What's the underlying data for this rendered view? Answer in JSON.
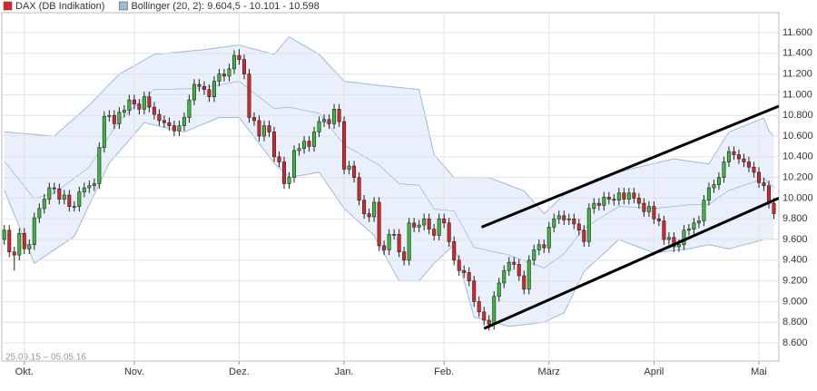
{
  "chart_data": {
    "type": "candlestick",
    "date_range": "25.09.15 – 05.05.16",
    "xlim": [
      -0.5,
      155
    ],
    "xticks": [
      {
        "value": 4,
        "label": "Okt."
      },
      {
        "value": 26,
        "label": "Nov."
      },
      {
        "value": 47,
        "label": "Dez."
      },
      {
        "value": 68,
        "label": "Jan."
      },
      {
        "value": 88,
        "label": "Feb."
      },
      {
        "value": 109,
        "label": "März"
      },
      {
        "value": 130,
        "label": "April"
      },
      {
        "value": 151,
        "label": "Mai"
      }
    ],
    "ylim": [
      8425,
      11793
    ],
    "yticks": [
      {
        "value": 8600,
        "label": "8.600"
      },
      {
        "value": 8800,
        "label": "8.800"
      },
      {
        "value": 9000,
        "label": "9.000"
      },
      {
        "value": 9200,
        "label": "9.200"
      },
      {
        "value": 9400,
        "label": "9.400"
      },
      {
        "value": 9600,
        "label": "9.600"
      },
      {
        "value": 9800,
        "label": "9.800"
      },
      {
        "value": 10000,
        "label": "10.000"
      },
      {
        "value": 10200,
        "label": "10.200"
      },
      {
        "value": 10400,
        "label": "10.400"
      },
      {
        "value": 10600,
        "label": "10.600"
      },
      {
        "value": 10800,
        "label": "10.800"
      },
      {
        "value": 11000,
        "label": "11.000"
      },
      {
        "value": 11200,
        "label": "11.200"
      },
      {
        "value": 11400,
        "label": "11.400"
      },
      {
        "value": 11600,
        "label": "11.600"
      }
    ],
    "grid": true,
    "series": [
      {
        "name": "DAX (DB Indikation)",
        "color": "#d9262b",
        "up_color": "#3cb93c",
        "down_color": "#d9262b",
        "open": [
          9600,
          9690,
          9480,
          9450,
          9660,
          9510,
          9550,
          9810,
          9900,
          9990,
          10100,
          10090,
          9990,
          10030,
          9920,
          9920,
          10060,
          10100,
          10120,
          10140,
          10490,
          10790,
          10800,
          10720,
          10830,
          10850,
          10950,
          10910,
          10860,
          10980,
          10880,
          10810,
          10750,
          10730,
          10700,
          10650,
          10700,
          10780,
          10950,
          11100,
          11080,
          11050,
          10980,
          11130,
          11200,
          11180,
          11250,
          11380,
          11340,
          11200,
          10780,
          10750,
          10600,
          10700,
          10640,
          10400,
          10350,
          10140,
          10200,
          10460,
          10480,
          10550,
          10500,
          10640,
          10740,
          10760,
          10720,
          10860,
          10740,
          10280,
          10310,
          10200,
          9980,
          9850,
          9820,
          9960,
          9540,
          9500,
          9650,
          9650,
          9480,
          9400,
          9760,
          9720,
          9740,
          9800,
          9700,
          9640,
          9800,
          9760,
          9580,
          9400,
          9300,
          9280,
          9200,
          9000,
          8900,
          8820,
          8780,
          9050,
          9180,
          9300,
          9380,
          9360,
          9250,
          9120,
          9400,
          9500,
          9550,
          9520,
          9720,
          9800,
          9830,
          9790,
          9800,
          9750,
          9690,
          9580,
          9900,
          9950,
          9930,
          10010,
          9990,
          9980,
          10050,
          9990,
          10050,
          10000,
          9950,
          9870,
          9920,
          9800,
          9780,
          9600,
          9620,
          9530,
          9550,
          9690,
          9700,
          9760,
          9780,
          9980,
          10100,
          10130,
          10200,
          10350,
          10450,
          10420,
          10380,
          10350,
          10300,
          10250,
          10150,
          10120,
          9950
        ],
        "high": [
          9740,
          9740,
          9530,
          9710,
          9710,
          9600,
          9860,
          9950,
          10040,
          10150,
          10150,
          10140,
          10080,
          10080,
          9970,
          10110,
          10150,
          10170,
          10190,
          10540,
          10840,
          10850,
          10850,
          10880,
          10900,
          11000,
          11000,
          10960,
          11030,
          11030,
          10930,
          10860,
          10800,
          10780,
          10750,
          10750,
          10830,
          11000,
          11150,
          11150,
          11130,
          11100,
          11180,
          11250,
          11250,
          11300,
          11430,
          11440,
          11390,
          11250,
          10830,
          10800,
          10750,
          10750,
          10690,
          10450,
          10400,
          10250,
          10510,
          10530,
          10600,
          10600,
          10690,
          10790,
          10810,
          10810,
          10910,
          10910,
          10790,
          10360,
          10360,
          10250,
          10030,
          9900,
          10010,
          10010,
          9590,
          9700,
          9700,
          9700,
          9530,
          9810,
          9810,
          9790,
          9850,
          9850,
          9750,
          9850,
          9850,
          9810,
          9630,
          9450,
          9350,
          9330,
          9250,
          9050,
          8950,
          8870,
          9100,
          9230,
          9350,
          9430,
          9430,
          9410,
          9300,
          9450,
          9550,
          9600,
          9600,
          9770,
          9850,
          9880,
          9880,
          9850,
          9850,
          9800,
          9740,
          9950,
          10000,
          10000,
          10060,
          10060,
          10040,
          10100,
          10100,
          10100,
          10100,
          10050,
          10000,
          9970,
          9970,
          9850,
          9830,
          9670,
          9670,
          9600,
          9740,
          9750,
          9810,
          9830,
          10030,
          10150,
          10180,
          10250,
          10400,
          10500,
          10500,
          10470,
          10430,
          10400,
          10350,
          10300,
          10200,
          10170,
          10000
        ],
        "low": [
          9550,
          9430,
          9300,
          9400,
          9460,
          9460,
          9500,
          9760,
          9850,
          9940,
          10040,
          9940,
          9940,
          9870,
          9870,
          9870,
          10010,
          10050,
          10070,
          10090,
          10440,
          10740,
          10670,
          10670,
          10780,
          10800,
          10860,
          10810,
          10810,
          10830,
          10760,
          10700,
          10680,
          10650,
          10600,
          10600,
          10650,
          10730,
          10900,
          11030,
          11000,
          10930,
          10930,
          11080,
          11130,
          11130,
          11200,
          11290,
          11150,
          10730,
          10700,
          10550,
          10550,
          10590,
          10350,
          10300,
          10090,
          10090,
          10150,
          10410,
          10430,
          10450,
          10450,
          10590,
          10690,
          10670,
          10670,
          10690,
          10230,
          10230,
          10150,
          9930,
          9800,
          9770,
          9770,
          9490,
          9450,
          9450,
          9600,
          9430,
          9350,
          9350,
          9670,
          9670,
          9690,
          9650,
          9590,
          9590,
          9710,
          9530,
          9350,
          9250,
          9230,
          9150,
          8950,
          8850,
          8770,
          8720,
          8730,
          9000,
          9130,
          9250,
          9310,
          9200,
          9070,
          9070,
          9350,
          9450,
          9470,
          9470,
          9670,
          9750,
          9740,
          9740,
          9700,
          9640,
          9530,
          9530,
          9850,
          9880,
          9880,
          9940,
          9930,
          9930,
          9940,
          9940,
          9950,
          9900,
          9820,
          9820,
          9750,
          9730,
          9550,
          9550,
          9480,
          9480,
          9500,
          9640,
          9650,
          9710,
          9730,
          9930,
          10050,
          10080,
          10150,
          10300,
          10370,
          10330,
          10300,
          10250,
          10200,
          10100,
          10070,
          9900,
          9800
        ],
        "close": [
          9690,
          9480,
          9450,
          9660,
          9510,
          9550,
          9810,
          9900,
          9990,
          10100,
          10090,
          9990,
          10030,
          9920,
          9920,
          10060,
          10100,
          10120,
          10140,
          10490,
          10790,
          10800,
          10720,
          10830,
          10850,
          10950,
          10910,
          10860,
          10980,
          10880,
          10810,
          10750,
          10730,
          10700,
          10650,
          10700,
          10780,
          10950,
          11100,
          11080,
          11050,
          10980,
          11130,
          11200,
          11180,
          11250,
          11380,
          11340,
          11200,
          10780,
          10750,
          10600,
          10700,
          10640,
          10400,
          10350,
          10140,
          10200,
          10460,
          10480,
          10550,
          10500,
          10640,
          10740,
          10760,
          10720,
          10860,
          10740,
          10280,
          10310,
          10200,
          9980,
          9850,
          9820,
          9960,
          9540,
          9500,
          9650,
          9650,
          9480,
          9400,
          9760,
          9720,
          9740,
          9800,
          9700,
          9640,
          9800,
          9760,
          9580,
          9400,
          9300,
          9280,
          9200,
          9000,
          8900,
          8820,
          8780,
          9050,
          9180,
          9300,
          9380,
          9360,
          9250,
          9120,
          9400,
          9500,
          9550,
          9520,
          9720,
          9800,
          9830,
          9790,
          9800,
          9750,
          9690,
          9580,
          9900,
          9950,
          9930,
          10010,
          9990,
          9980,
          10050,
          9990,
          10050,
          10000,
          9950,
          9870,
          9920,
          9800,
          9780,
          9600,
          9620,
          9530,
          9550,
          9690,
          9700,
          9760,
          9780,
          9980,
          10100,
          10130,
          10200,
          10350,
          10450,
          10420,
          10380,
          10350,
          10300,
          10250,
          10150,
          10120,
          9950,
          9850
        ]
      }
    ],
    "bands": {
      "name": "Bollinger (20, 2): 9.604,5 - 10.101 - 10.598",
      "color": "#9fb8dc",
      "fill": "#e9f0fb",
      "upper": [
        10640,
        10636,
        10632,
        10628,
        10624,
        10620,
        10616,
        10612,
        10608,
        10604,
        10600,
        10643,
        10686,
        10729,
        10771,
        10814,
        10857,
        10900,
        10950,
        11000,
        11050,
        11100,
        11150,
        11200,
        11227,
        11254,
        11281,
        11309,
        11336,
        11363,
        11390,
        11394,
        11399,
        11403,
        11408,
        11412,
        11417,
        11421,
        11426,
        11430,
        11436,
        11443,
        11449,
        11455,
        11461,
        11468,
        11474,
        11480,
        11467,
        11454,
        11441,
        11429,
        11416,
        11403,
        11390,
        11447,
        11503,
        11560,
        11532,
        11503,
        11475,
        11447,
        11418,
        11390,
        11338,
        11286,
        11234,
        11182,
        11130,
        11124,
        11119,
        11113,
        11107,
        11101,
        11096,
        11090,
        11085,
        11080,
        11075,
        11070,
        11065,
        11060,
        11055,
        11050,
        10840,
        10630,
        10420,
        10365,
        10310,
        10255,
        10200,
        10200,
        10200,
        10200,
        10200,
        10200,
        10200,
        10200,
        10181,
        10163,
        10144,
        10126,
        10107,
        10089,
        10070,
        10015,
        9960,
        9905,
        9850,
        9895,
        9940,
        9985,
        10030,
        10054,
        10079,
        10103,
        10127,
        10151,
        10176,
        10200,
        10213,
        10226,
        10239,
        10251,
        10264,
        10277,
        10290,
        10301,
        10313,
        10324,
        10335,
        10346,
        10358,
        10369,
        10380,
        10373,
        10366,
        10359,
        10351,
        10344,
        10337,
        10330,
        10408,
        10485,
        10563,
        10640,
        10659,
        10679,
        10698,
        10717,
        10736,
        10756,
        10775,
        10650,
        10598
      ],
      "middle": [
        10357,
        10297,
        10236,
        10176,
        10116,
        10055,
        9995,
        10009,
        10023,
        10036,
        10050,
        10086,
        10121,
        10157,
        10193,
        10229,
        10264,
        10300,
        10375,
        10450,
        10525,
        10600,
        10675,
        10750,
        10793,
        10836,
        10879,
        10921,
        10964,
        11007,
        11050,
        11051,
        11052,
        11053,
        11054,
        11056,
        11057,
        11058,
        11059,
        11060,
        11069,
        11078,
        11086,
        11095,
        11104,
        11113,
        11121,
        11130,
        11092,
        11054,
        11016,
        10979,
        10941,
        10903,
        10865,
        10870,
        10875,
        10880,
        10870,
        10860,
        10850,
        10840,
        10830,
        10820,
        10759,
        10698,
        10637,
        10576,
        10515,
        10487,
        10459,
        10431,
        10404,
        10376,
        10348,
        10320,
        10275,
        10230,
        10185,
        10140,
        10136,
        10133,
        10129,
        10125,
        10048,
        9972,
        9895,
        9890,
        9885,
        9880,
        9875,
        9788,
        9700,
        9613,
        9525,
        9514,
        9504,
        9493,
        9482,
        9471,
        9461,
        9450,
        9432,
        9414,
        9396,
        9379,
        9361,
        9343,
        9325,
        9359,
        9393,
        9426,
        9460,
        9523,
        9585,
        9648,
        9710,
        9740,
        9770,
        9800,
        9830,
        9860,
        9890,
        9920,
        9917,
        9914,
        9911,
        9909,
        9906,
        9903,
        9900,
        9905,
        9910,
        9915,
        9920,
        9925,
        9930,
        9935,
        9936,
        9938,
        9939,
        9940,
        9974,
        10008,
        10041,
        10075,
        10091,
        10108,
        10124,
        10141,
        10157,
        10174,
        10190,
        10146,
        10101
      ],
      "lower": [
        10075,
        9958,
        9840,
        9723,
        9605,
        9488,
        9370,
        9403,
        9435,
        9468,
        9500,
        9533,
        9565,
        9598,
        9630,
        9731,
        9833,
        9934,
        10036,
        10137,
        10239,
        10340,
        10396,
        10451,
        10507,
        10563,
        10619,
        10674,
        10730,
        10719,
        10708,
        10696,
        10685,
        10674,
        10663,
        10651,
        10640,
        10660,
        10680,
        10700,
        10720,
        10740,
        10760,
        10780,
        10780,
        10780,
        10780,
        10780,
        10717,
        10654,
        10591,
        10529,
        10466,
        10403,
        10340,
        10293,
        10247,
        10200,
        10208,
        10217,
        10225,
        10233,
        10242,
        10250,
        10180,
        10110,
        10040,
        9970,
        9900,
        9857,
        9813,
        9770,
        9727,
        9683,
        9640,
        9552,
        9464,
        9376,
        9288,
        9200,
        9200,
        9200,
        9200,
        9200,
        9257,
        9313,
        9370,
        9415,
        9460,
        9505,
        9550,
        9375,
        9200,
        9025,
        8850,
        8837,
        8824,
        8811,
        8799,
        8786,
        8773,
        8760,
        8766,
        8771,
        8777,
        8783,
        8789,
        8794,
        8800,
        8823,
        8845,
        8868,
        8890,
        8990,
        9090,
        9190,
        9290,
        9334,
        9379,
        9423,
        9467,
        9511,
        9556,
        9600,
        9581,
        9563,
        9544,
        9526,
        9507,
        9489,
        9470,
        9476,
        9481,
        9487,
        9493,
        9499,
        9504,
        9510,
        9520,
        9530,
        9540,
        9550,
        9540,
        9530,
        9520,
        9510,
        9523,
        9536,
        9549,
        9561,
        9574,
        9587,
        9600,
        9600,
        9605
      ]
    },
    "trend_lines": [
      {
        "x": [
          96,
          155
        ],
        "y": [
          8740,
          10000
        ]
      },
      {
        "x": [
          95.5,
          155
        ],
        "y": [
          9720,
          10890
        ]
      }
    ]
  }
}
